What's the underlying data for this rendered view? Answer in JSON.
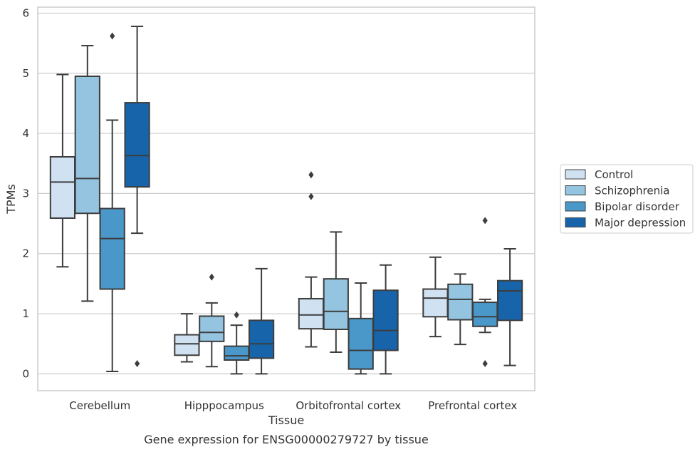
{
  "chart_data": {
    "type": "box",
    "xlabel": "Tissue",
    "ylabel": "TPMs",
    "caption": "Gene expression for ENSG00000279727 by tissue",
    "ylim": [
      -0.28,
      6.1
    ],
    "yticks": [
      0,
      1,
      2,
      3,
      4,
      5,
      6
    ],
    "grid": "horizontal",
    "legend_position": "right",
    "categories": [
      "Cerebellum",
      "Hipppocampus",
      "Orbitofrontal cortex",
      "Prefrontal cortex"
    ],
    "series": [
      {
        "name": "Control",
        "color": "#d0e1f2",
        "boxes": [
          {
            "whislo": 1.78,
            "q1": 2.59,
            "med": 3.19,
            "q3": 3.61,
            "whishi": 4.98,
            "fliers": []
          },
          {
            "whislo": 0.2,
            "q1": 0.31,
            "med": 0.5,
            "q3": 0.65,
            "whishi": 1.0,
            "fliers": []
          },
          {
            "whislo": 0.45,
            "q1": 0.75,
            "med": 0.98,
            "q3": 1.25,
            "whishi": 1.61,
            "fliers": [
              2.95,
              3.31
            ]
          },
          {
            "whislo": 0.62,
            "q1": 0.95,
            "med": 1.26,
            "q3": 1.41,
            "whishi": 1.94,
            "fliers": []
          }
        ]
      },
      {
        "name": "Schizophrenia",
        "color": "#94c4df",
        "boxes": [
          {
            "whislo": 1.21,
            "q1": 2.67,
            "med": 3.25,
            "q3": 4.95,
            "whishi": 5.46,
            "fliers": []
          },
          {
            "whislo": 0.12,
            "q1": 0.54,
            "med": 0.69,
            "q3": 0.96,
            "whishi": 1.18,
            "fliers": [
              1.61
            ]
          },
          {
            "whislo": 0.36,
            "q1": 0.74,
            "med": 1.04,
            "q3": 1.58,
            "whishi": 2.36,
            "fliers": []
          },
          {
            "whislo": 0.49,
            "q1": 0.9,
            "med": 1.24,
            "q3": 1.49,
            "whishi": 1.66,
            "fliers": []
          }
        ]
      },
      {
        "name": "Bipolar disorder",
        "color": "#4a98c9",
        "boxes": [
          {
            "whislo": 0.04,
            "q1": 1.41,
            "med": 2.25,
            "q3": 2.75,
            "whishi": 4.22,
            "fliers": [
              5.62
            ]
          },
          {
            "whislo": 0.0,
            "q1": 0.23,
            "med": 0.3,
            "q3": 0.46,
            "whishi": 0.81,
            "fliers": [
              0.98
            ]
          },
          {
            "whislo": 0.0,
            "q1": 0.08,
            "med": 0.39,
            "q3": 0.92,
            "whishi": 1.51,
            "fliers": []
          },
          {
            "whislo": 0.69,
            "q1": 0.79,
            "med": 0.95,
            "q3": 1.19,
            "whishi": 1.24,
            "fliers": [
              0.17,
              2.55
            ]
          }
        ]
      },
      {
        "name": "Major depression",
        "color": "#1764ab",
        "boxes": [
          {
            "whislo": 2.34,
            "q1": 3.11,
            "med": 3.63,
            "q3": 4.51,
            "whishi": 5.78,
            "fliers": [
              0.17
            ]
          },
          {
            "whislo": 0.0,
            "q1": 0.26,
            "med": 0.5,
            "q3": 0.89,
            "whishi": 1.75,
            "fliers": []
          },
          {
            "whislo": 0.0,
            "q1": 0.39,
            "med": 0.72,
            "q3": 1.39,
            "whishi": 1.81,
            "fliers": []
          },
          {
            "whislo": 0.14,
            "q1": 0.89,
            "med": 1.38,
            "q3": 1.55,
            "whishi": 2.08,
            "fliers": []
          }
        ]
      }
    ]
  }
}
